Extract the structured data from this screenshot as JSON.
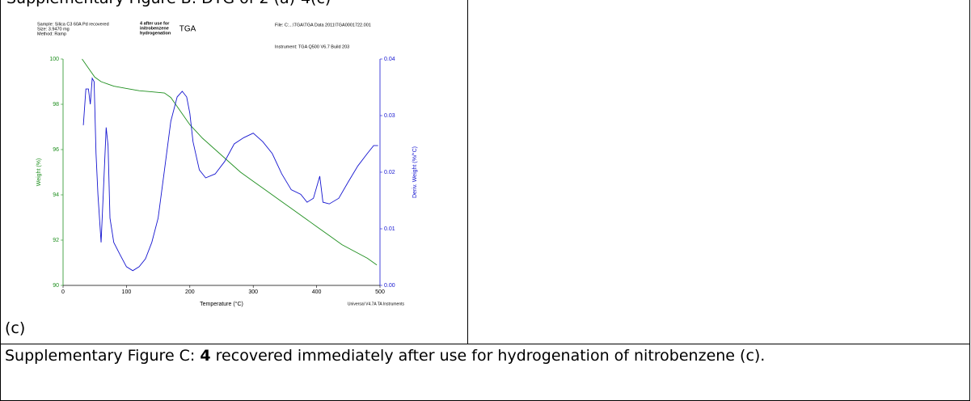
{
  "header_caption": "Supplementary Figure B: DTG of 2 (a)-4(c)",
  "panel_label": "(c)",
  "caption": {
    "prefix": "Supplementary Figure C: ",
    "bold": "4",
    "suffix": " recovered immediately after use for hydrogenation of nitrobenzene (c)."
  },
  "chart_data": {
    "type": "line",
    "title": "TGA",
    "info_left": [
      "Sample: Silica C3 60A Pd recovered",
      "Size:  3.9470 mg",
      "Method: Ramp"
    ],
    "info_note": [
      "4 after use for",
      "initrobenzene",
      "hydrogenation"
    ],
    "info_right": [
      "File: C:...\\TGA\\TGA Data 2011\\TGA0001722.001",
      "Instrument: TGA Q500 V6.7 Build 203"
    ],
    "footer": "Universal V4.7A TA Instruments",
    "xlabel": "Temperature (°C)",
    "ylabel": "Weight (%)",
    "y2label": "Deriv. Weight (%/°C)",
    "xlim": [
      0,
      500
    ],
    "xticks": [
      0,
      100,
      200,
      300,
      400,
      500
    ],
    "ylim": [
      90,
      100
    ],
    "yticks": [
      90,
      92,
      94,
      96,
      98,
      100
    ],
    "y2lim": [
      0,
      0.04
    ],
    "y2ticks": [
      {
        "value": 0,
        "label": "0.00"
      },
      0.01,
      0.02,
      0.03,
      0.04
    ],
    "series": [
      {
        "name": "Weight (%)",
        "color": "#1f8f1f",
        "x": [
          30,
          40,
          50,
          60,
          70,
          80,
          100,
          120,
          140,
          160,
          170,
          180,
          190,
          200,
          210,
          220,
          240,
          260,
          280,
          300,
          320,
          340,
          360,
          380,
          400,
          420,
          440,
          460,
          480,
          495
        ],
        "values": [
          100.0,
          99.6,
          99.2,
          99.0,
          98.9,
          98.8,
          98.7,
          98.6,
          98.55,
          98.5,
          98.3,
          97.9,
          97.5,
          97.1,
          96.8,
          96.5,
          96.0,
          95.5,
          95.0,
          94.6,
          94.2,
          93.8,
          93.4,
          93.0,
          92.6,
          92.2,
          91.8,
          91.5,
          91.2,
          90.9
        ]
      },
      {
        "name": "Deriv. Weight (%/°C)",
        "color": "#1515d0",
        "axis": "y2",
        "x": [
          32,
          36,
          40,
          43,
          46,
          49,
          52,
          55,
          60,
          64,
          68,
          71,
          74,
          80,
          90,
          100,
          110,
          120,
          130,
          140,
          150,
          160,
          170,
          180,
          188,
          195,
          200,
          205,
          215,
          225,
          240,
          255,
          270,
          285,
          300,
          315,
          330,
          345,
          360,
          375,
          385,
          395,
          405,
          410,
          420,
          435,
          450,
          465,
          480,
          490,
          497
        ],
        "values": [
          0.0283,
          0.0347,
          0.0347,
          0.032,
          0.0366,
          0.036,
          0.0233,
          0.0161,
          0.0076,
          0.0176,
          0.0279,
          0.0247,
          0.0119,
          0.0076,
          0.0054,
          0.0033,
          0.0026,
          0.0033,
          0.0047,
          0.0076,
          0.0119,
          0.0204,
          0.029,
          0.0333,
          0.0343,
          0.0333,
          0.0304,
          0.0254,
          0.0204,
          0.019,
          0.0197,
          0.0219,
          0.025,
          0.0261,
          0.0269,
          0.0254,
          0.0233,
          0.0197,
          0.0169,
          0.0161,
          0.0147,
          0.0154,
          0.0193,
          0.0147,
          0.0144,
          0.0154,
          0.0183,
          0.0211,
          0.0233,
          0.0247,
          0.0247
        ]
      }
    ]
  }
}
